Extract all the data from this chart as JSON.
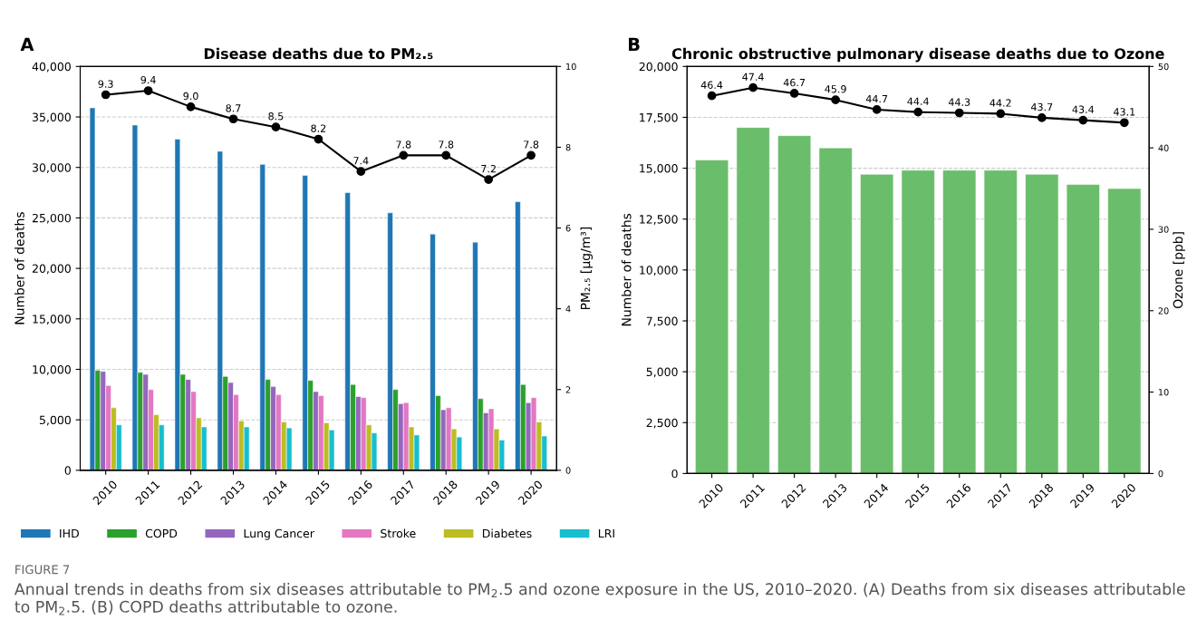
{
  "chart_data": [
    {
      "type": "bar",
      "title": "Disease deaths due to PM₂.₅",
      "ylabel": "Number of deaths",
      "y2label": "PM₂.₅ [μg/m³]",
      "categories": [
        "2010",
        "2011",
        "2012",
        "2013",
        "2014",
        "2015",
        "2016",
        "2017",
        "2018",
        "2019",
        "2020"
      ],
      "series": [
        {
          "name": "IHD",
          "color": "#1f77b4",
          "values": [
            35900,
            34200,
            32800,
            31600,
            30300,
            29200,
            27500,
            25500,
            23400,
            22600,
            26600
          ]
        },
        {
          "name": "COPD",
          "color": "#2ca02c",
          "values": [
            9900,
            9700,
            9500,
            9300,
            9000,
            8900,
            8500,
            8000,
            7400,
            7100,
            8500
          ]
        },
        {
          "name": "Lung Cancer",
          "color": "#9467bd",
          "values": [
            9800,
            9500,
            9000,
            8700,
            8300,
            7800,
            7300,
            6600,
            6000,
            5700,
            6700
          ]
        },
        {
          "name": "Stroke",
          "color": "#e377c2",
          "values": [
            8400,
            8000,
            7800,
            7500,
            7500,
            7400,
            7200,
            6700,
            6200,
            6100,
            7200
          ]
        },
        {
          "name": "Diabetes",
          "color": "#bcbd22",
          "values": [
            6200,
            5500,
            5200,
            4900,
            4800,
            4700,
            4500,
            4300,
            4100,
            4100,
            4800
          ]
        },
        {
          "name": "LRI",
          "color": "#17becf",
          "values": [
            4500,
            4500,
            4300,
            4300,
            4200,
            4000,
            3700,
            3500,
            3300,
            3000,
            3400
          ]
        },
        {
          "type": "line",
          "axis": "y2",
          "color": "#000000",
          "values": [
            9.3,
            9.4,
            9.0,
            8.7,
            8.5,
            8.2,
            7.4,
            7.8,
            7.8,
            7.2,
            7.8
          ],
          "value_labels": [
            "9.3",
            "9.4",
            "9.0",
            "8.7",
            "8.5",
            "8.2",
            "7.4",
            "7.8",
            "7.8",
            "7.2",
            "7.8"
          ],
          "marker": "circle",
          "line_style": "solid"
        }
      ],
      "ylim": [
        0,
        40000
      ],
      "yticks": [
        0,
        {
          "value": 5000,
          "label": "5,000"
        },
        {
          "value": 10000,
          "label": "10,000"
        },
        {
          "value": 15000,
          "label": "15,000"
        },
        {
          "value": 20000,
          "label": "20,000"
        },
        {
          "value": 25000,
          "label": "25,000"
        },
        {
          "value": 30000,
          "label": "30,000"
        },
        {
          "value": 35000,
          "label": "35,000"
        },
        {
          "value": 40000,
          "label": "40,000"
        }
      ],
      "y2lim": [
        0,
        10
      ],
      "y2ticks": [
        0,
        2,
        4,
        6,
        8,
        10
      ],
      "grid": "y",
      "legend": "bottom",
      "annotations": [
        "A",
        "FIGURE 7",
        "Annual trends in deaths from six diseases attributable to PM$_{2}$.5 and ozone exposure in the US, 2010–2020. (A) Deaths from six diseases attributable to PM$_{2}$.5. (B) COPD deaths attributable to ozone."
      ]
    },
    {
      "type": "bar",
      "title": "Chronic obstructive pulmonary disease deaths due to Ozone",
      "ylabel": "Number of deaths",
      "y2label": "Ozone [ppb]",
      "categories": [
        "2010",
        "2011",
        "2012",
        "2013",
        "2014",
        "2015",
        "2016",
        "2017",
        "2018",
        "2019",
        "2020"
      ],
      "series": [
        {
          "color": "#6abd6a",
          "values": [
            15400,
            17000,
            16600,
            16000,
            14700,
            14900,
            14900,
            14900,
            14700,
            14200,
            14000
          ]
        },
        {
          "type": "line",
          "axis": "y2",
          "color": "#000000",
          "values": [
            46.4,
            47.4,
            46.7,
            45.9,
            44.7,
            44.4,
            44.3,
            44.2,
            43.7,
            43.4,
            43.1
          ],
          "value_labels": [
            "46.4",
            "47.4",
            "46.7",
            "45.9",
            "44.7",
            "44.4",
            "44.3",
            "44.2",
            "43.7",
            "43.4",
            "43.1"
          ],
          "marker": "circle",
          "line_style": "solid"
        }
      ],
      "ylim": [
        0,
        20000
      ],
      "yticks": [
        0,
        {
          "value": 2500,
          "label": "2,500"
        },
        {
          "value": 5000,
          "label": "5,000"
        },
        {
          "value": 7500,
          "label": "7,500"
        },
        {
          "value": 10000,
          "label": "10,000"
        },
        {
          "value": 12500,
          "label": "12,500"
        },
        {
          "value": 15000,
          "label": "15,000"
        },
        {
          "value": 17500,
          "label": "17,500"
        },
        {
          "value": 20000,
          "label": "20,000"
        }
      ],
      "y2lim": [
        0,
        50
      ],
      "y2ticks": [
        0,
        10,
        20,
        30,
        40,
        50
      ],
      "grid": "y",
      "annotations": [
        "B"
      ]
    }
  ]
}
